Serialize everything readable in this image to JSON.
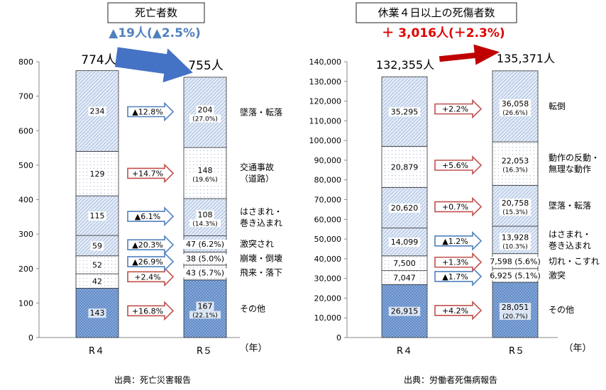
{
  "chart_data": [
    {
      "type": "bar",
      "stacked": true,
      "title": "死亡者数",
      "subtitle": "▲19人(▲2.5%)",
      "categories": [
        "R４",
        "R５"
      ],
      "xlabel": "（年）",
      "ylabel": "",
      "ylim": [
        0,
        800
      ],
      "yticks": [
        0,
        100,
        200,
        300,
        400,
        500,
        600,
        700,
        800
      ],
      "grid": false,
      "totals": [
        "774人",
        "755人"
      ],
      "source": "出典：死亡災害報告",
      "colors": {
        "subtitle": "#4f81bd",
        "total_arrow": "#4472c4",
        "dark": "#5a86c6",
        "light": "#ffffff",
        "pale": "#dfe8f5"
      },
      "series": [
        {
          "name": "その他",
          "values": [
            143,
            167
          ],
          "labels": [
            "143",
            "167"
          ],
          "share": "(22.1%)",
          "change": "+16.8%",
          "direction": "up",
          "shade": "dark"
        },
        {
          "name": "飛来・落下",
          "values": [
            42,
            43
          ],
          "labels": [
            "42",
            "43 (5.7%)"
          ],
          "share": "",
          "change": "+2.4%",
          "direction": "up",
          "shade": "light"
        },
        {
          "name": "崩壊・倒壊",
          "values": [
            52,
            38
          ],
          "labels": [
            "52",
            "38 (5.0%)"
          ],
          "share": "",
          "change": "▲26.9%",
          "direction": "down",
          "shade": "light"
        },
        {
          "name": "激突され",
          "values": [
            59,
            47
          ],
          "labels": [
            "59",
            "47 (6.2%)"
          ],
          "share": "",
          "change": "▲20.3%",
          "direction": "down",
          "shade": "pale"
        },
        {
          "name": "はさまれ・巻き込まれ",
          "values": [
            115,
            108
          ],
          "labels": [
            "115",
            "108"
          ],
          "share": "(14.3%)",
          "change": "▲6.1%",
          "direction": "down",
          "shade": "pale"
        },
        {
          "name": "交通事故（道路）",
          "values": [
            129,
            148
          ],
          "labels": [
            "129",
            "148"
          ],
          "share": "(19.6%)",
          "change": "+14.7%",
          "direction": "up",
          "shade": "light"
        },
        {
          "name": "墜落・転落",
          "values": [
            234,
            204
          ],
          "labels": [
            "234",
            "204"
          ],
          "share": "(27.0%)",
          "change": "▲12.8%",
          "direction": "down",
          "shade": "pale"
        }
      ]
    },
    {
      "type": "bar",
      "stacked": true,
      "title": "休業４日以上の死傷者数",
      "subtitle": "＋ 3,016人(＋2.3%)",
      "categories": [
        "R４",
        "R５"
      ],
      "xlabel": "（年）",
      "ylabel": "",
      "ylim": [
        0,
        140000
      ],
      "yticks": [
        "0",
        "10,000",
        "20,000",
        "30,000",
        "40,000",
        "50,000",
        "60,000",
        "70,000",
        "80,000",
        "90,000",
        "100,000",
        "110,000",
        "120,000",
        "130,000",
        "140,000"
      ],
      "grid": false,
      "totals": [
        "132,355人",
        "135,371人"
      ],
      "source": "出典：労働者死傷病報告",
      "colors": {
        "subtitle": "#e00000",
        "total_arrow": "#c00000",
        "dark": "#5a86c6",
        "light": "#ffffff",
        "pale": "#dfe8f5"
      },
      "series": [
        {
          "name": "その他",
          "values": [
            26915,
            28051
          ],
          "labels": [
            "26,915",
            "28,051"
          ],
          "share": "(20.7%)",
          "change": "+4.2%",
          "direction": "up",
          "shade": "dark"
        },
        {
          "name": "激突",
          "values": [
            7047,
            6925
          ],
          "labels": [
            "7,047",
            "6,925 (5.1%)"
          ],
          "share": "",
          "change": "▲1.7%",
          "direction": "down",
          "shade": "light"
        },
        {
          "name": "切れ・こすれ",
          "values": [
            7500,
            7598
          ],
          "labels": [
            "7,500",
            "7,598 (5.6%)"
          ],
          "share": "",
          "change": "+1.3%",
          "direction": "up",
          "shade": "light"
        },
        {
          "name": "はさまれ・巻き込まれ",
          "values": [
            14099,
            13928
          ],
          "labels": [
            "14,099",
            "13,928"
          ],
          "share": "(10.3%)",
          "change": "▲1.2%",
          "direction": "down",
          "shade": "pale"
        },
        {
          "name": "墜落・転落",
          "values": [
            20620,
            20758
          ],
          "labels": [
            "20,620",
            "20,758"
          ],
          "share": "(15.3%)",
          "change": "+0.7%",
          "direction": "up",
          "shade": "pale"
        },
        {
          "name": "動作の反動・無理な動作",
          "values": [
            20879,
            22053
          ],
          "labels": [
            "20,879",
            "22,053"
          ],
          "share": "(16.3%)",
          "change": "+5.6%",
          "direction": "up",
          "shade": "light"
        },
        {
          "name": "転倒",
          "values": [
            35295,
            36058
          ],
          "labels": [
            "35,295",
            "36,058"
          ],
          "share": "(26.6%)",
          "change": "+2.2%",
          "direction": "up",
          "shade": "pale"
        }
      ]
    }
  ]
}
